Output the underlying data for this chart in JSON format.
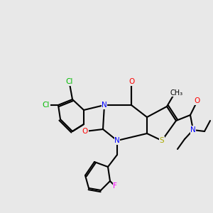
{
  "bg_color": "#e8e8e8",
  "bond_color": "#000000",
  "lw": 1.5,
  "atom_colors": {
    "N": "#0000FF",
    "O": "#FF0000",
    "S": "#AAAA00",
    "Cl": "#00BB00",
    "F": "#FF00FF",
    "C": "#000000"
  },
  "font_size": 7.5
}
